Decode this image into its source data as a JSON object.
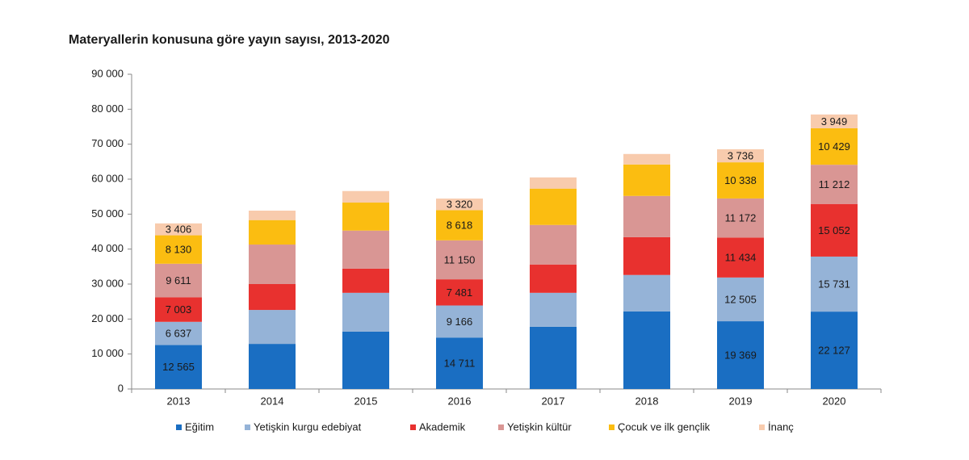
{
  "chart_data": {
    "type": "stacked_bar",
    "title": "Materyallerin konusuna göre yayın sayısı, 2013-2020",
    "categories": [
      "2013",
      "2014",
      "2015",
      "2016",
      "2017",
      "2018",
      "2019",
      "2020"
    ],
    "ylim": [
      0,
      90000
    ],
    "yticks": [
      0,
      {
        "value": 10000,
        "label": "10 000"
      },
      {
        "value": 20000,
        "label": "20 000"
      },
      {
        "value": 30000,
        "label": "30 000"
      },
      {
        "value": 40000,
        "label": "40 000"
      },
      {
        "value": 50000,
        "label": "50 000"
      },
      {
        "value": 60000,
        "label": "60 000"
      },
      {
        "value": 70000,
        "label": "70 000"
      },
      {
        "value": 80000,
        "label": "80 000"
      },
      {
        "value": 90000,
        "label": "90 000"
      }
    ],
    "grid": false,
    "legend": "bottom",
    "series": [
      {
        "name": "Eğitim",
        "color": "#1a6ec2",
        "values": [
          12565,
          12900,
          16400,
          14711,
          17800,
          22200,
          19369,
          22127
        ],
        "value_labels": [
          "12 565",
          null,
          null,
          "14 711",
          null,
          null,
          "19 369",
          "22 127"
        ]
      },
      {
        "name": "Yetişkin kurgu edebiyat",
        "color": "#95b3d7",
        "values": [
          6637,
          9700,
          11100,
          9166,
          9700,
          10400,
          12505,
          15731
        ],
        "value_labels": [
          "6 637",
          null,
          null,
          "9 166",
          null,
          null,
          "12 505",
          "15 731"
        ]
      },
      {
        "name": "Akademik",
        "color": "#e8312f",
        "values": [
          7003,
          7400,
          6900,
          7481,
          8100,
          10800,
          11434,
          15052
        ],
        "value_labels": [
          "7 003",
          null,
          null,
          "7 481",
          null,
          null,
          "11 434",
          "15 052"
        ]
      },
      {
        "name": "Yetişkin kültür",
        "color": "#d99694",
        "values": [
          9611,
          11300,
          10900,
          11150,
          11300,
          11800,
          11172,
          11212
        ],
        "value_labels": [
          "9 611",
          null,
          null,
          "11 150",
          null,
          null,
          "11 172",
          "11 212"
        ]
      },
      {
        "name": "Çocuk ve ilk gençlik",
        "color": "#fbbd11",
        "values": [
          8130,
          7000,
          8000,
          8618,
          10400,
          9000,
          10338,
          10429
        ],
        "value_labels": [
          "8 130",
          null,
          null,
          "8 618",
          null,
          null,
          "10 338",
          "10 429"
        ]
      },
      {
        "name": "İnanç",
        "color": "#f8cbad",
        "values": [
          3406,
          2700,
          3300,
          3320,
          3200,
          3000,
          3736,
          3949
        ],
        "value_labels": [
          "3 406",
          null,
          null,
          "3 320",
          null,
          null,
          "3 736",
          "3 949"
        ]
      }
    ]
  }
}
